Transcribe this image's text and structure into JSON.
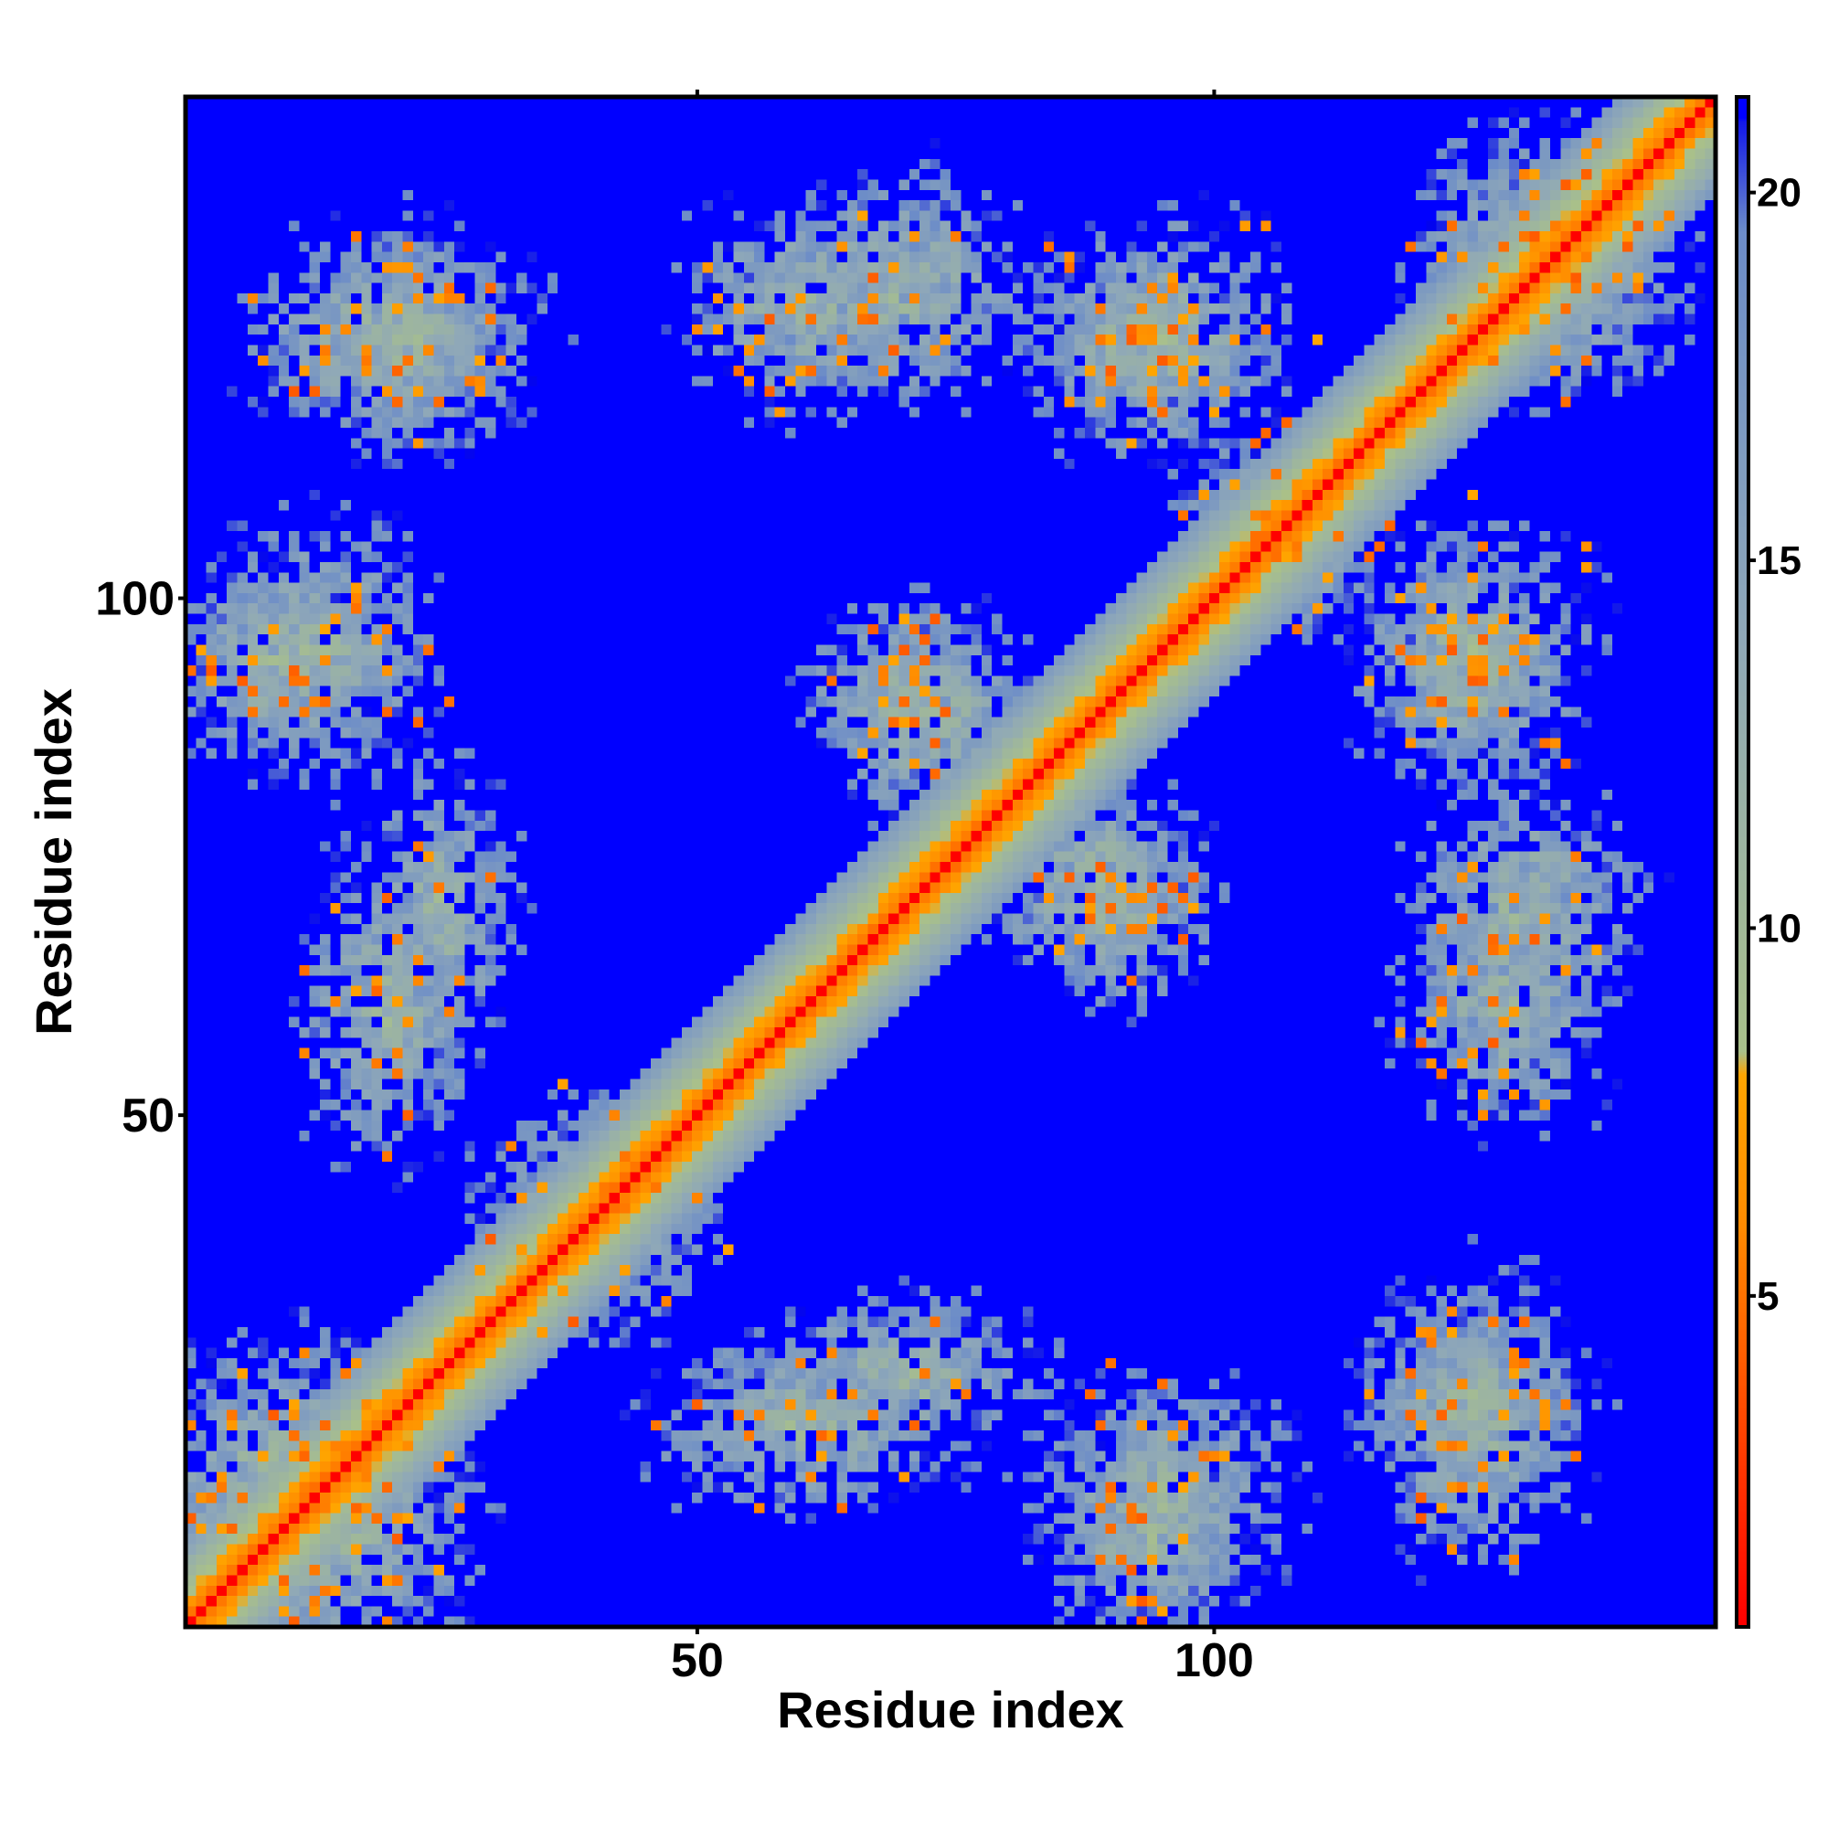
{
  "chart_data": {
    "type": "heatmap",
    "title": "",
    "xlabel": "Residue index",
    "ylabel": "Residue index",
    "n_residues": 148,
    "xlim": [
      1,
      148
    ],
    "ylim": [
      1,
      148
    ],
    "x_ticks": [
      50,
      100
    ],
    "y_ticks": [
      50,
      100
    ],
    "colorbar": {
      "ticks": [
        5,
        10,
        15,
        20
      ],
      "range": [
        0.5,
        21.3
      ],
      "colormap": [
        {
          "value": 0.5,
          "color": "#ff0000"
        },
        {
          "value": 6.0,
          "color": "#ff8c00"
        },
        {
          "value": 8.0,
          "color": "#ffa500"
        },
        {
          "value": 8.3,
          "color": "#a9c08a"
        },
        {
          "value": 14.0,
          "color": "#8fa8b8"
        },
        {
          "value": 19.5,
          "color": "#6c8cc8"
        },
        {
          "value": 21.3,
          "color": "#0000f0"
        }
      ]
    },
    "cutoff_background_value": 21.3,
    "background_color": "#0000ff",
    "diagonal": {
      "contact_distance": 3.8,
      "band_halfwidth_residues": 9
    },
    "contact_clusters": [
      {
        "x": 20,
        "y": 125,
        "rx": 12,
        "ry": 8
      },
      {
        "x": 9,
        "y": 94,
        "rx": 9,
        "ry": 8
      },
      {
        "x": 20,
        "y": 60,
        "rx": 7,
        "ry": 12
      },
      {
        "x": 10,
        "y": 15,
        "rx": 14,
        "ry": 10
      },
      {
        "x": 60,
        "y": 128,
        "rx": 10,
        "ry": 8
      },
      {
        "x": 93,
        "y": 125,
        "rx": 9,
        "ry": 7
      },
      {
        "x": 70,
        "y": 90,
        "rx": 8,
        "ry": 8
      },
      {
        "x": 88,
        "y": 73,
        "rx": 9,
        "ry": 8
      },
      {
        "x": 70,
        "y": 25,
        "rx": 11,
        "ry": 6
      },
      {
        "x": 95,
        "y": 13,
        "rx": 10,
        "ry": 10
      },
      {
        "x": 125,
        "y": 22,
        "rx": 9,
        "ry": 8
      },
      {
        "x": 130,
        "y": 70,
        "rx": 9,
        "ry": 10
      },
      {
        "x": 125,
        "y": 95,
        "rx": 10,
        "ry": 10
      },
      {
        "x": 133,
        "y": 132,
        "rx": 10,
        "ry": 10
      },
      {
        "x": 40,
        "y": 40,
        "rx": 9,
        "ry": 8
      },
      {
        "x": 105,
        "y": 107,
        "rx": 7,
        "ry": 7
      }
    ]
  }
}
